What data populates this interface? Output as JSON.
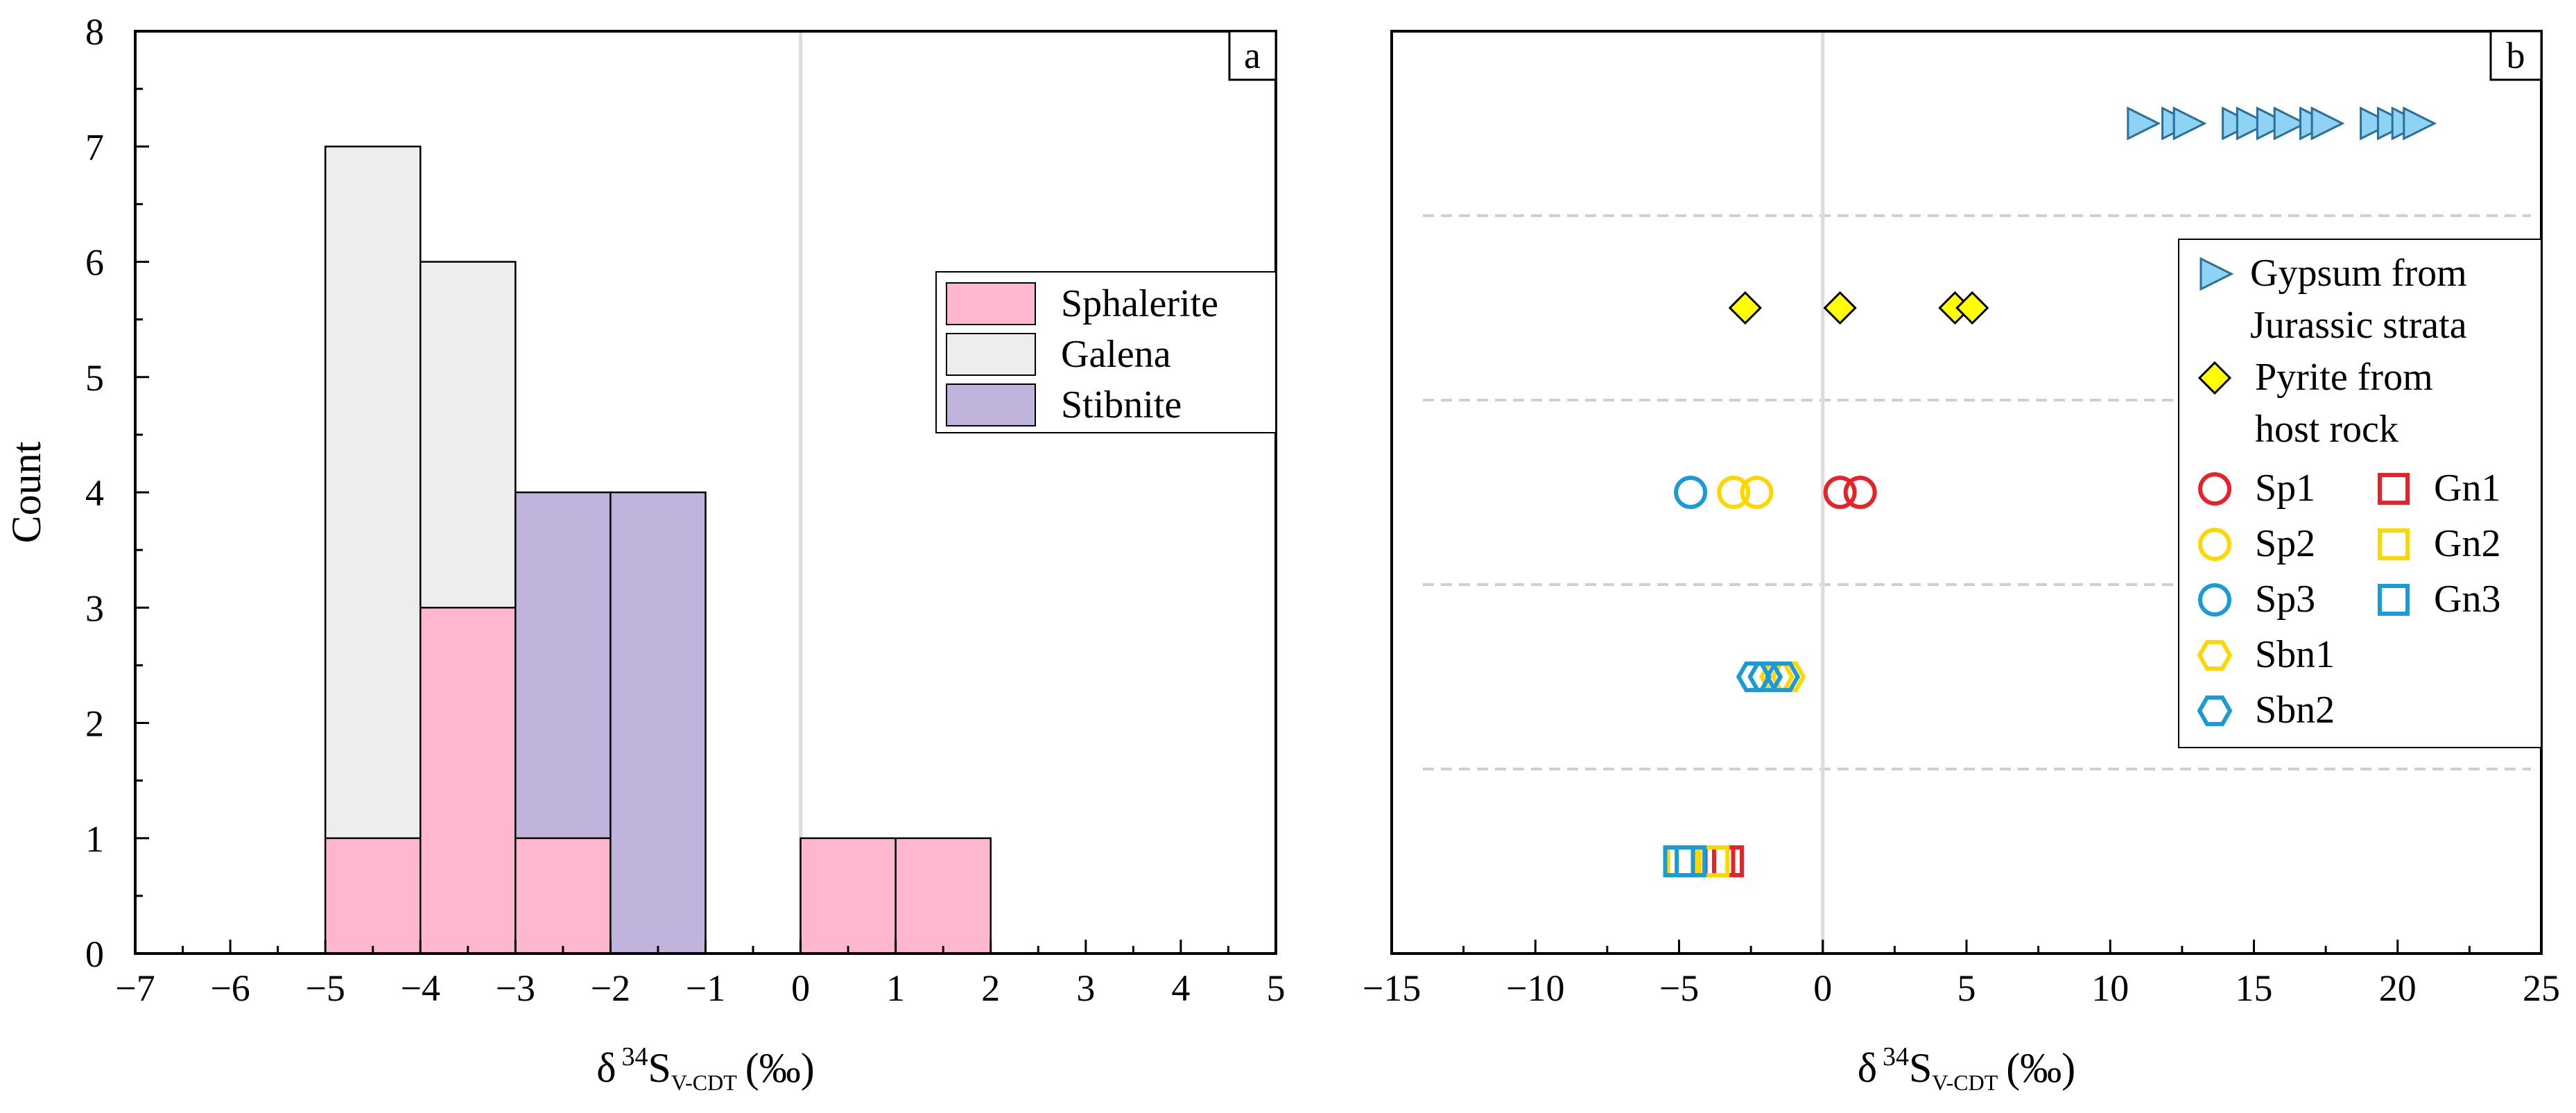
{
  "chart_data": [
    {
      "panel": "a",
      "type": "bar",
      "subtype": "stacked-histogram",
      "xlabel": "δ 34SV-CDT (‰)",
      "xlabel_parts": {
        "delta": "δ",
        "sup": "34",
        "main": "S",
        "sub": "V-CDT",
        "unit": "(‰)"
      },
      "ylabel": "Count",
      "xlim": [
        -7,
        5
      ],
      "ylim": [
        0,
        8
      ],
      "xticks": [
        "−7",
        "−6",
        "−5",
        "−4",
        "−3",
        "−2",
        "−1",
        "0",
        "1",
        "2",
        "3",
        "4",
        "5"
      ],
      "xtick_values": [
        -7,
        -6,
        -5,
        -4,
        -3,
        -2,
        -1,
        0,
        1,
        2,
        3,
        4,
        5
      ],
      "yticks": [
        "0",
        "1",
        "2",
        "3",
        "4",
        "5",
        "6",
        "7",
        "8"
      ],
      "ytick_values": [
        0,
        1,
        2,
        3,
        4,
        5,
        6,
        7,
        8
      ],
      "bin_edges": [
        -5,
        -4,
        -3,
        -2,
        -1,
        0,
        1,
        2
      ],
      "reference_line_x": 0,
      "legend": {
        "position": "right-middle",
        "entries": [
          "Sphalerite",
          "Galena",
          "Stibnite"
        ]
      },
      "series": [
        {
          "name": "Sphalerite",
          "color": "#ffb6cf",
          "values": [
            1,
            3,
            1,
            0,
            0,
            1,
            1
          ]
        },
        {
          "name": "Galena",
          "color": "#ededed",
          "values": [
            6,
            3,
            0,
            0,
            0,
            0,
            0
          ]
        },
        {
          "name": "Stibnite",
          "color": "#c0b4dd",
          "values": [
            0,
            0,
            3,
            4,
            0,
            0,
            0
          ]
        }
      ],
      "bar_totals": [
        7,
        6,
        4,
        4,
        0,
        1,
        1
      ]
    },
    {
      "panel": "b",
      "type": "scatter",
      "xlabel": "δ 34SV-CDT (‰)",
      "xlabel_parts": {
        "delta": "δ",
        "sup": "34",
        "main": "S",
        "sub": "V-CDT",
        "unit": "(‰)"
      },
      "xlim": [
        -15,
        25
      ],
      "ylim": [
        0,
        8
      ],
      "xticks": [
        "−15",
        "−10",
        "−5",
        "0",
        "5",
        "10",
        "15",
        "20",
        "25"
      ],
      "xtick_values": [
        -15,
        -10,
        -5,
        0,
        5,
        10,
        15,
        20,
        25
      ],
      "reference_line_x": 0,
      "separator_lines_y": [
        1.6,
        3.2,
        4.8,
        6.4
      ],
      "series": [
        {
          "name": "Gypsum from Jurassic strata",
          "marker": "triangle-right",
          "color": "#3ea9e0",
          "fill": "#8fd3f4",
          "y": 7.2,
          "x": [
            11.1,
            12.3,
            12.7,
            14.4,
            14.9,
            15.6,
            16.2,
            17.1,
            17.5,
            19.2,
            19.8,
            20.3,
            20.7
          ]
        },
        {
          "name": "Pyrite from host rock",
          "marker": "diamond",
          "color": "#000000",
          "fill": "#ffff00",
          "y": 5.6,
          "x": [
            -2.7,
            0.6,
            4.6,
            5.2
          ]
        },
        {
          "name": "Sp1",
          "marker": "circle",
          "color": "#e82229",
          "y": 4.0,
          "x": [
            0.6,
            1.3
          ]
        },
        {
          "name": "Sp2",
          "marker": "circle",
          "color": "#ffd700",
          "y": 4.0,
          "x": [
            -3.1,
            -2.3
          ]
        },
        {
          "name": "Sp3",
          "marker": "circle",
          "color": "#1a9ad6",
          "y": 4.0,
          "x": [
            -4.6
          ]
        },
        {
          "name": "Sbn1",
          "marker": "hexagon",
          "color": "#ffd700",
          "y": 2.4,
          "x": [
            -1.6,
            -1.2
          ]
        },
        {
          "name": "Sbn2",
          "marker": "hexagon",
          "color": "#1a9ad6",
          "y": 2.4,
          "x": [
            -2.4,
            -2.0,
            -1.4
          ]
        },
        {
          "name": "Gn1",
          "marker": "square",
          "color": "#e82229",
          "y": 0.8,
          "x": [
            -3.3,
            -3.6
          ]
        },
        {
          "name": "Gn2",
          "marker": "square",
          "color": "#ffd700",
          "y": 0.8,
          "x": [
            -3.8,
            -4.9
          ]
        },
        {
          "name": "Gn3",
          "marker": "square",
          "color": "#1a9ad6",
          "y": 0.8,
          "x": [
            -4.6,
            -5.0
          ]
        }
      ],
      "legend": {
        "position": "top-right",
        "entries": [
          {
            "series": "Gypsum from Jurassic strata",
            "lines": [
              "Gypsum from",
              "Jurassic strata"
            ]
          },
          {
            "series": "Pyrite from host rock",
            "lines": [
              "Pyrite from",
              "host rock"
            ]
          },
          {
            "series": "Sp1",
            "lines": [
              "Sp1"
            ]
          },
          {
            "series": "Sp2",
            "lines": [
              "Sp2"
            ]
          },
          {
            "series": "Sp3",
            "lines": [
              "Sp3"
            ]
          },
          {
            "series": "Sbn1",
            "lines": [
              "Sbn1"
            ]
          },
          {
            "series": "Sbn2",
            "lines": [
              "Sbn2"
            ]
          },
          {
            "series": "Gn1",
            "lines": [
              "Gn1"
            ]
          },
          {
            "series": "Gn2",
            "lines": [
              "Gn2"
            ]
          },
          {
            "series": "Gn3",
            "lines": [
              "Gn3"
            ]
          }
        ]
      }
    }
  ]
}
